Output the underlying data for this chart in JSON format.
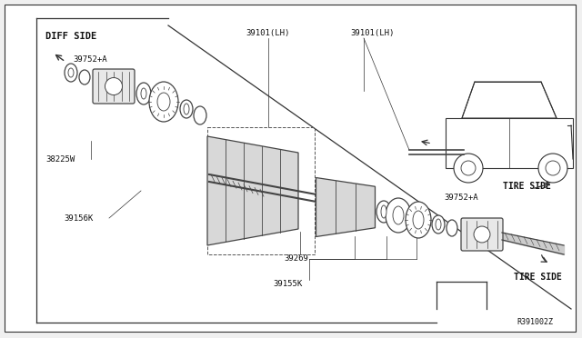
{
  "bg_color": "#f0f0f0",
  "line_color": "#333333",
  "part_color": "#444444",
  "text_color": "#111111",
  "fig_width": 6.4,
  "fig_height": 3.72,
  "dpi": 100,
  "labels": {
    "diff_side": "DIFF SIDE",
    "tire_side_upper": "TIRE SIDE",
    "tire_side_lower": "TIRE SIDE",
    "part_39752_a_upper": "39752+A",
    "part_38225w": "38225W",
    "part_39156k": "39156K",
    "part_39101_lh_left": "39101(LH)",
    "part_39101_lh_right": "39101(LH)",
    "part_39269": "39269",
    "part_39155k": "39155K",
    "part_39752_a_lower": "39752+A",
    "ref_code": "R391002Z"
  }
}
